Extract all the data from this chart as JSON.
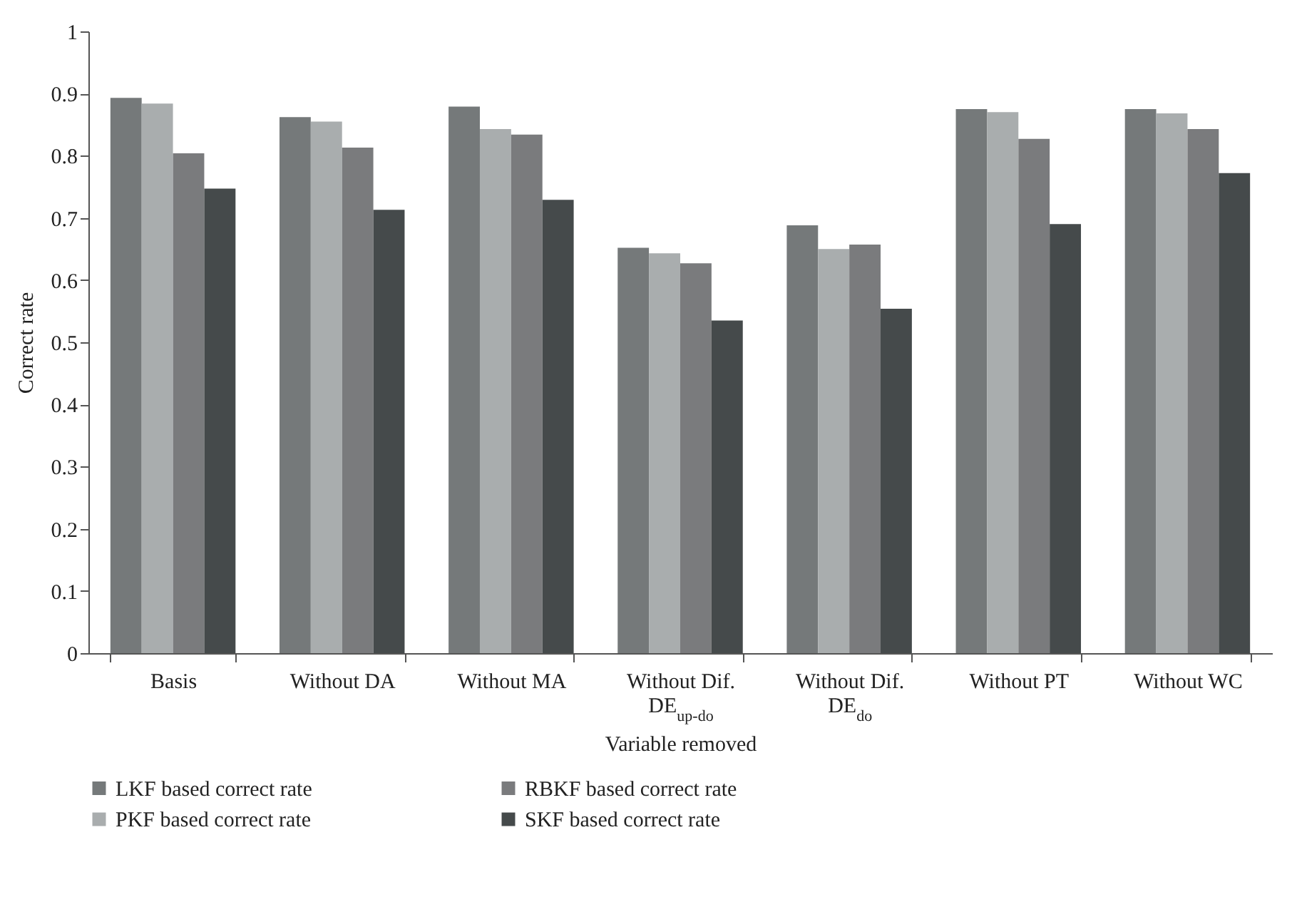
{
  "chart_data": {
    "type": "bar",
    "xlabel": "Variable removed",
    "ylabel": "Correct rate",
    "categories": [
      "Basis",
      "Without DA",
      "Without MA",
      "Without Dif. DE$_{up-do}$",
      "Without Dif. DE$_{do}$",
      "Without PT",
      "Without WC"
    ],
    "series": [
      {
        "name": "LKF based correct rate",
        "color": "#75797a",
        "values": [
          0.893,
          0.862,
          0.879,
          0.652,
          0.688,
          0.875,
          0.875
        ]
      },
      {
        "name": "PKF based correct rate",
        "color": "#a9adae",
        "values": [
          0.884,
          0.855,
          0.843,
          0.643,
          0.65,
          0.87,
          0.868
        ]
      },
      {
        "name": "RBKF based correct rate",
        "color": "#7a7b7d",
        "values": [
          0.804,
          0.813,
          0.834,
          0.627,
          0.657,
          0.827,
          0.843
        ]
      },
      {
        "name": "SKF based correct rate",
        "color": "#454a4b",
        "values": [
          0.747,
          0.713,
          0.729,
          0.535,
          0.554,
          0.69,
          0.772
        ]
      }
    ],
    "ylim": [
      0,
      1
    ],
    "yticks": [
      0,
      0.1,
      0.2,
      0.3,
      0.4,
      0.5,
      0.6,
      0.7,
      0.8,
      0.9,
      1
    ],
    "grid": false,
    "legend": "bottom"
  }
}
